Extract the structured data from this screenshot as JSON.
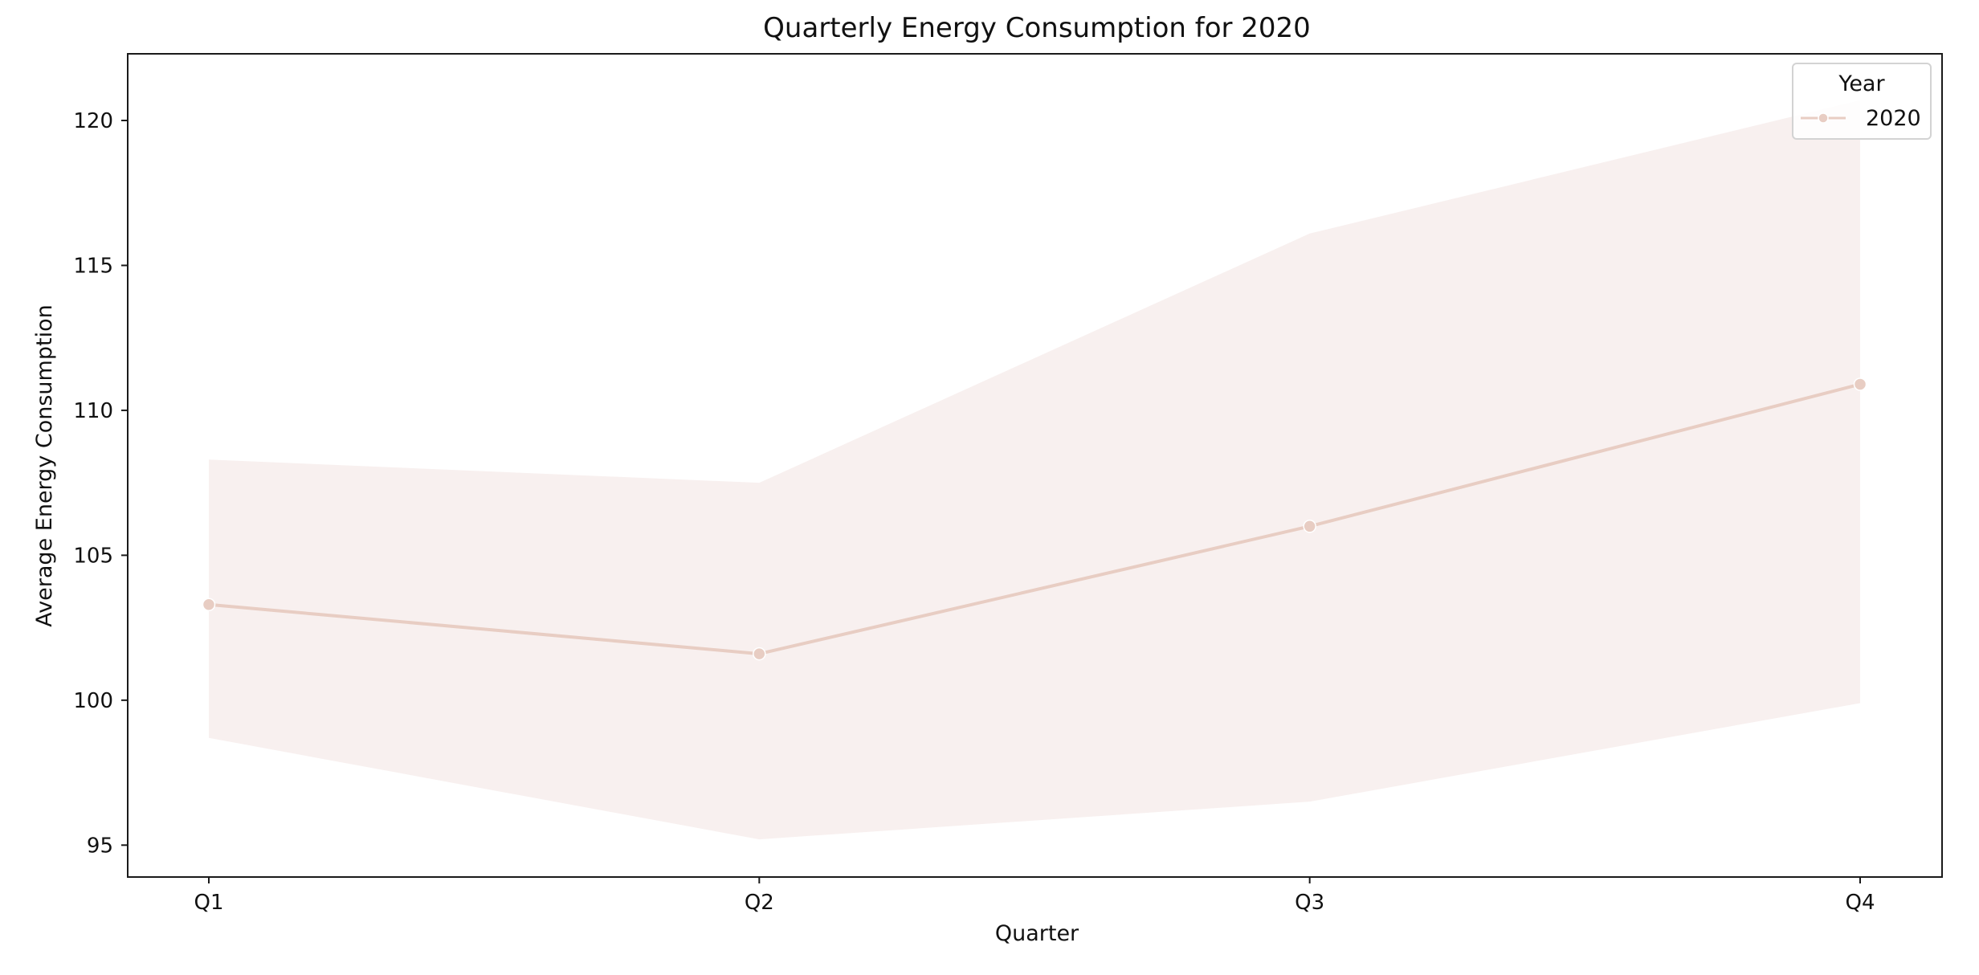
{
  "chart_data": {
    "type": "line",
    "title": "Quarterly Energy Consumption for 2020",
    "xlabel": "Quarter",
    "ylabel": "Average Energy Consumption",
    "categories": [
      "Q1",
      "Q2",
      "Q3",
      "Q4"
    ],
    "series": [
      {
        "name": "2020",
        "values": [
          103.3,
          101.6,
          106.0,
          110.9
        ],
        "ci_lower": [
          98.7,
          95.2,
          96.5,
          99.9
        ],
        "ci_upper": [
          108.3,
          107.5,
          116.1,
          120.7
        ],
        "color": "#e8cdc3",
        "band_color": "#f8f0ef"
      }
    ],
    "yticks": [
      95,
      100,
      105,
      110,
      115,
      120
    ],
    "ylim": [
      93.9,
      122.3
    ],
    "grid": false,
    "legend": {
      "title": "Year",
      "position": "top-right"
    }
  }
}
